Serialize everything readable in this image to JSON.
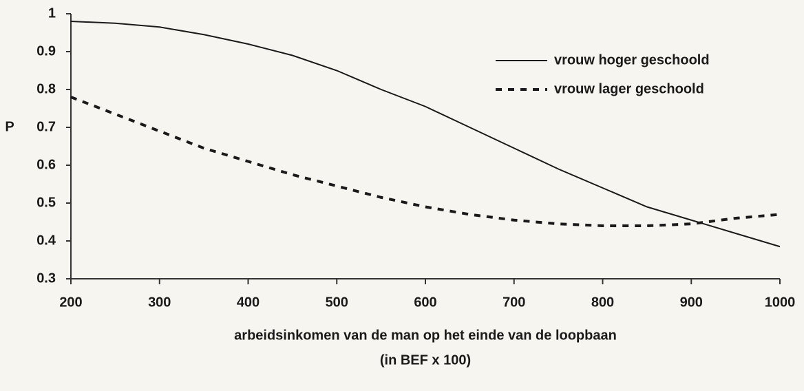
{
  "chart_data": {
    "type": "line",
    "ylabel": "P",
    "xlabel": [
      "arbeidsinkomen van de man op het einde van de loopbaan",
      "(in BEF x 100)"
    ],
    "x": [
      200,
      250,
      300,
      350,
      400,
      450,
      500,
      550,
      600,
      650,
      700,
      750,
      800,
      850,
      900,
      950,
      1000
    ],
    "series": [
      {
        "name": "vrouw hoger geschoold",
        "color": "#1a1a1a",
        "style": "solid",
        "values": [
          0.98,
          0.975,
          0.965,
          0.945,
          0.92,
          0.89,
          0.85,
          0.8,
          0.755,
          0.7,
          0.645,
          0.59,
          0.54,
          0.49,
          0.455,
          0.42,
          0.385
        ]
      },
      {
        "name": "vrouw lager geschoold",
        "color": "#1a1a1a",
        "style": "dashed",
        "values": [
          0.78,
          0.735,
          0.69,
          0.645,
          0.61,
          0.575,
          0.545,
          0.515,
          0.49,
          0.47,
          0.455,
          0.445,
          0.44,
          0.44,
          0.445,
          0.46,
          0.47
        ]
      }
    ],
    "xlim": [
      200,
      1000
    ],
    "xticks": [
      200,
      300,
      400,
      500,
      600,
      700,
      800,
      900,
      1000
    ],
    "ylim": [
      0.3,
      1
    ],
    "yticks": [
      0.3,
      0.4,
      0.5,
      0.6,
      0.7,
      0.8,
      0.9,
      1
    ],
    "grid": false,
    "legend": "upper right"
  }
}
